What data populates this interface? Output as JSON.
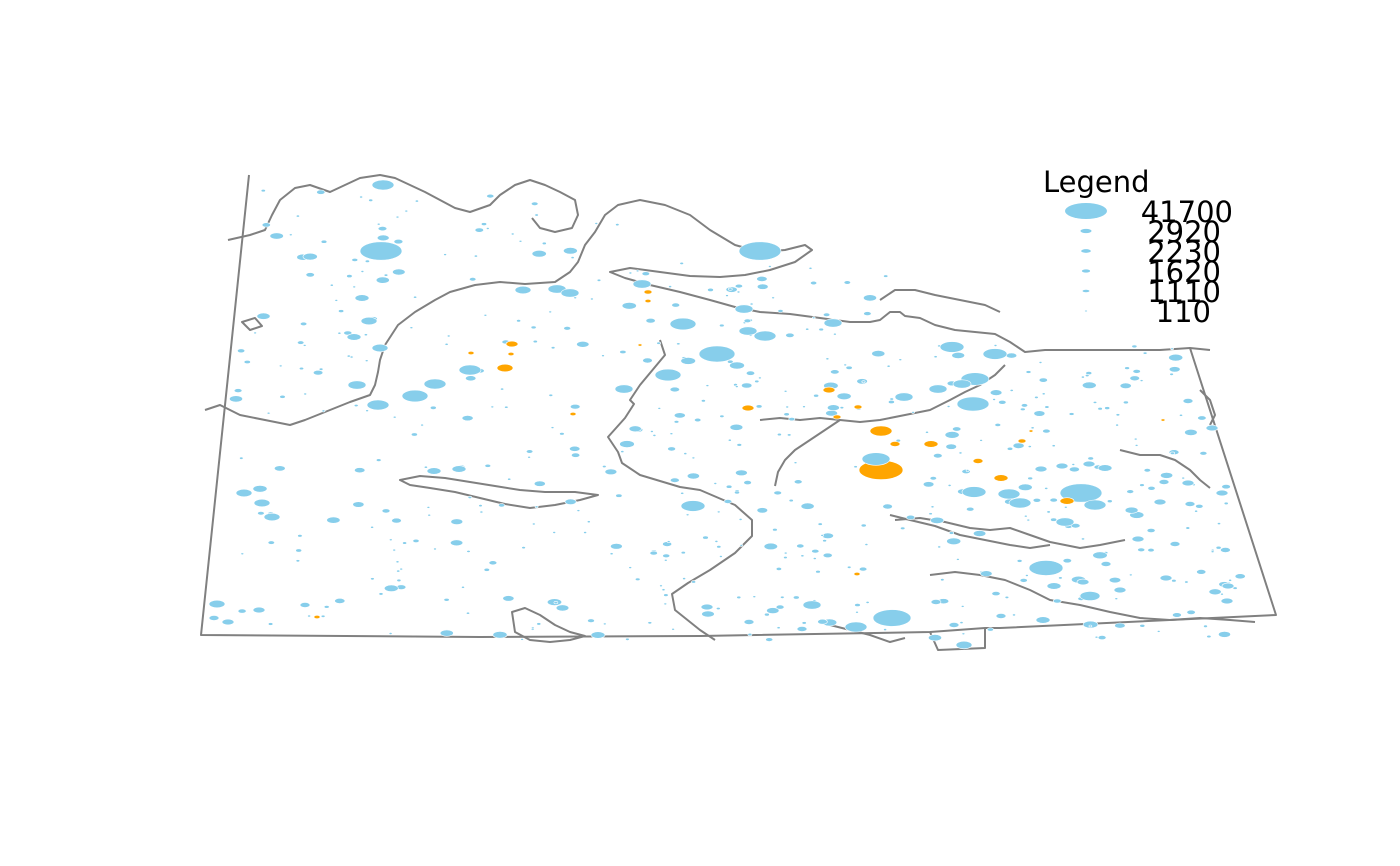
{
  "legend": {
    "title": "Legend",
    "entries": [
      {
        "label": "41700",
        "value": 41700
      },
      {
        "label": "2920",
        "value": 2920
      },
      {
        "label": "2230",
        "value": 2230
      },
      {
        "label": "1620",
        "value": 1620
      },
      {
        "label": "1110",
        "value": 1110
      },
      {
        "label": "110",
        "value": 110
      }
    ]
  },
  "colors": {
    "symbol_default": "#87CEEB",
    "symbol_highlight": "#FFA500",
    "outline": "#808080",
    "background": "#FFFFFF"
  }
}
